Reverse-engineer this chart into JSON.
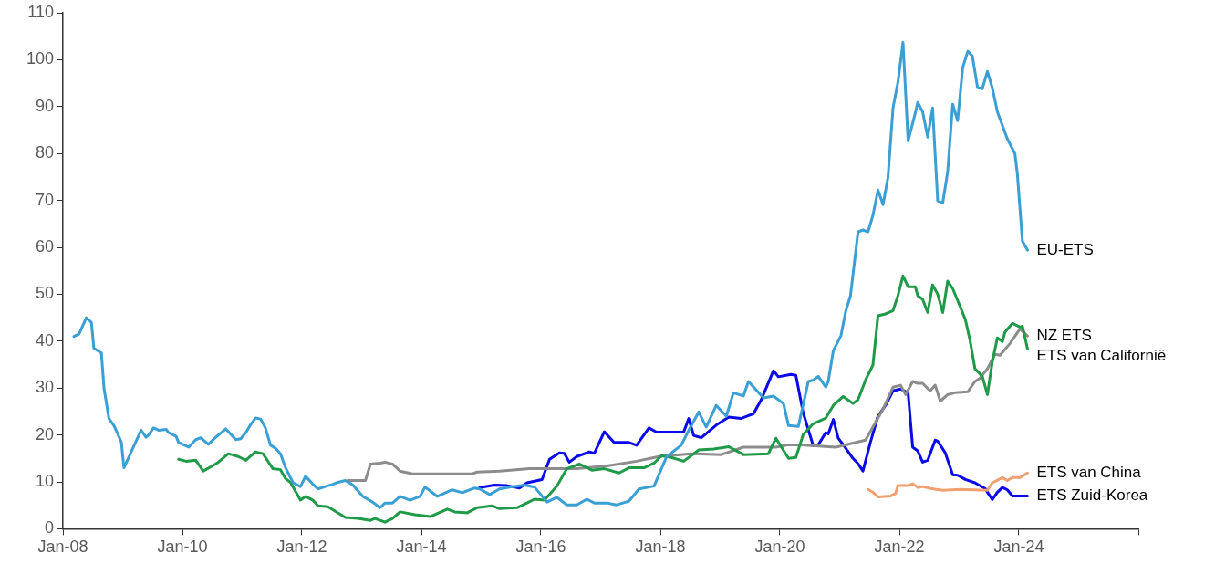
{
  "chart_data": {
    "type": "line",
    "xlim": [
      "2008-01",
      "2026-01"
    ],
    "ylim": [
      0,
      110
    ],
    "xticks": [
      {
        "value": "2008-01",
        "label": "Jan-08"
      },
      {
        "value": "2010-01",
        "label": "Jan-10"
      },
      {
        "value": "2012-01",
        "label": "Jan-12"
      },
      {
        "value": "2014-01",
        "label": "Jan-14"
      },
      {
        "value": "2016-01",
        "label": "Jan-16"
      },
      {
        "value": "2018-01",
        "label": "Jan-18"
      },
      {
        "value": "2020-01",
        "label": "Jan-20"
      },
      {
        "value": "2022-01",
        "label": "Jan-22"
      },
      {
        "value": "2024-01",
        "label": "Jan-24"
      },
      {
        "value": "2026-01",
        "label": null
      }
    ],
    "yticks": [
      0,
      10,
      20,
      30,
      40,
      50,
      60,
      70,
      80,
      90,
      100,
      110
    ],
    "grid": false,
    "legend": false,
    "marker": "none",
    "line_style": "solid",
    "series": [
      {
        "name": "EU-ETS",
        "color": "#3a9fd5",
        "x": [
          "2008-03-08",
          "2008-04-08",
          "2008-05-23",
          "2008-06-23",
          "2008-07-08",
          "2008-08-23",
          "2008-09-08",
          "2008-10-08",
          "2008-11-08",
          "2008-12-23",
          "2009-01-08",
          "2009-03-08",
          "2009-04-23",
          "2009-05-23",
          "2009-06-08",
          "2009-07-08",
          "2009-08-08",
          "2009-09-23",
          "2009-10-08",
          "2009-11-23",
          "2009-12-08",
          "2010-02-08",
          "2010-03-23",
          "2010-04-23",
          "2010-06-08",
          "2010-07-23",
          "2010-09-23",
          "2010-11-23",
          "2010-12-23",
          "2011-01-23",
          "2011-02-23",
          "2011-03-23",
          "2011-04-23",
          "2011-05-23",
          "2011-06-23",
          "2011-07-23",
          "2011-08-23",
          "2011-09-23",
          "2011-11-08",
          "2011-12-23",
          "2012-01-23",
          "2012-03-08",
          "2012-04-08",
          "2012-05-23",
          "2012-07-08",
          "2012-08-08",
          "2012-09-23",
          "2012-11-08",
          "2013-01-08",
          "2013-03-08",
          "2013-04-23",
          "2013-05-23",
          "2013-07-08",
          "2013-08-23",
          "2013-10-23",
          "2013-12-23",
          "2014-01-23",
          "2014-04-08",
          "2014-07-08",
          "2014-09-08",
          "2014-11-23",
          "2014-12-23",
          "2015-02-23",
          "2015-04-23",
          "2015-06-23",
          "2015-09-23",
          "2015-11-23",
          "2016-02-08",
          "2016-04-08",
          "2016-06-08",
          "2016-08-08",
          "2016-10-08",
          "2016-11-23",
          "2017-02-08",
          "2017-04-08",
          "2017-06-23",
          "2017-08-23",
          "2017-11-23",
          "2018-02-08",
          "2018-05-08",
          "2018-06-23",
          "2018-08-23",
          "2018-10-08",
          "2018-12-08",
          "2019-02-08",
          "2019-03-23",
          "2019-05-23",
          "2019-06-23",
          "2019-09-23",
          "2019-11-23",
          "2020-01-23",
          "2020-02-23",
          "2020-04-23",
          "2020-06-23",
          "2020-07-23",
          "2020-08-23",
          "2020-10-08",
          "2020-10-23",
          "2020-11-23",
          "2021-01-08",
          "2021-02-08",
          "2021-03-08",
          "2021-04-23",
          "2021-05-23",
          "2021-06-23",
          "2021-07-23",
          "2021-08-23",
          "2021-09-23",
          "2021-10-23",
          "2021-11-23",
          "2021-12-23",
          "2022-01-23",
          "2022-02-23",
          "2022-04-08",
          "2022-04-23",
          "2022-05-23",
          "2022-06-23",
          "2022-07-23",
          "2022-08-23",
          "2022-09-23",
          "2022-10-23",
          "2022-11-23",
          "2022-12-23",
          "2023-01-23",
          "2023-02-23",
          "2023-03-23",
          "2023-04-23",
          "2023-05-23",
          "2023-06-23",
          "2023-07-23",
          "2023-08-23",
          "2023-10-23",
          "2023-12-08",
          "2023-12-23",
          "2024-01-23",
          "2024-02-23"
        ],
        "values": [
          41,
          41.5,
          45,
          44,
          38.5,
          37.5,
          30,
          23.5,
          22,
          18.5,
          13,
          17.5,
          21,
          19.5,
          20,
          21.5,
          21,
          21.2,
          20.5,
          19.7,
          18.4,
          17.4,
          19,
          19.4,
          18,
          19.5,
          21.3,
          19,
          19.2,
          20.5,
          22.3,
          23.6,
          23.4,
          21.5,
          17.8,
          17.2,
          16,
          13,
          9.8,
          9,
          11.2,
          9.5,
          8.5,
          9,
          9.5,
          9.9,
          10.3,
          9.3,
          6.9,
          5.7,
          4.5,
          5.5,
          5.5,
          6.9,
          6.1,
          6.9,
          8.9,
          6.9,
          8.3,
          7.7,
          8.7,
          8.5,
          7.3,
          8.5,
          8.9,
          9.3,
          8.9,
          5.7,
          6.7,
          5.1,
          5.1,
          6.3,
          5.5,
          5.5,
          5.1,
          5.9,
          8.5,
          9.1,
          15.4,
          17.8,
          21,
          24.9,
          21.7,
          26.3,
          24,
          29,
          28.3,
          31.4,
          27.9,
          28.3,
          26.7,
          22,
          21.8,
          31.4,
          31.7,
          32.5,
          30.2,
          31.4,
          38,
          41.1,
          46.5,
          49.7,
          63.3,
          63.7,
          63.3,
          66.8,
          72.2,
          69.1,
          74.9,
          89.7,
          95.2,
          103.7,
          82.7,
          88.6,
          90.9,
          88.9,
          83.5,
          89.7,
          69.9,
          69.5,
          76.1,
          90.5,
          87,
          98.3,
          101.8,
          100.8,
          94.2,
          93.8,
          97.5,
          94,
          88.9,
          83.1,
          80,
          75.7,
          61.3,
          59.4
        ]
      },
      {
        "name": "ETS van Californië",
        "color": "#1f9a48",
        "x": [
          "2009-12-08",
          "2010-01-23",
          "2010-03-23",
          "2010-05-08",
          "2010-06-23",
          "2010-08-08",
          "2010-10-08",
          "2010-12-08",
          "2011-01-23",
          "2011-03-23",
          "2011-05-08",
          "2011-07-08",
          "2011-08-23",
          "2011-09-23",
          "2011-10-23",
          "2011-12-23",
          "2012-01-23",
          "2012-03-08",
          "2012-04-08",
          "2012-06-08",
          "2012-08-08",
          "2012-09-23",
          "2012-12-08",
          "2013-02-23",
          "2013-03-23",
          "2013-05-23",
          "2013-07-08",
          "2013-08-23",
          "2013-11-23",
          "2014-02-23",
          "2014-06-08",
          "2014-07-23",
          "2014-10-08",
          "2014-12-08",
          "2015-03-08",
          "2015-04-23",
          "2015-08-08",
          "2015-10-08",
          "2015-11-23",
          "2016-01-23",
          "2016-04-08",
          "2016-06-08",
          "2016-08-23",
          "2016-11-08",
          "2017-01-23",
          "2017-04-23",
          "2017-06-23",
          "2017-09-23",
          "2017-11-23",
          "2018-01-08",
          "2018-03-08",
          "2018-05-23",
          "2018-08-23",
          "2018-11-23",
          "2019-02-23",
          "2019-05-23",
          "2019-10-23",
          "2019-12-08",
          "2020-02-23",
          "2020-04-08",
          "2020-05-23",
          "2020-07-23",
          "2020-10-08",
          "2020-11-23",
          "2021-01-23",
          "2021-03-23",
          "2021-04-23",
          "2021-06-08",
          "2021-07-23",
          "2021-08-23",
          "2021-10-08",
          "2021-11-23",
          "2021-12-23",
          "2022-01-23",
          "2022-02-23",
          "2022-04-08",
          "2022-04-23",
          "2022-05-23",
          "2022-06-23",
          "2022-07-23",
          "2022-08-23",
          "2022-09-23",
          "2022-10-23",
          "2022-11-23",
          "2023-01-08",
          "2023-02-08",
          "2023-03-08",
          "2023-04-08",
          "2023-05-23",
          "2023-06-23",
          "2023-07-23",
          "2023-08-23",
          "2023-09-23",
          "2023-10-08",
          "2023-11-23",
          "2024-01-08",
          "2024-01-23",
          "2024-02-23"
        ],
        "values": [
          14.8,
          14.4,
          14.6,
          12.3,
          13.2,
          14.2,
          16,
          15.4,
          14.6,
          16.4,
          16,
          12.8,
          12.6,
          10.7,
          9.9,
          6.1,
          6.9,
          6.1,
          4.9,
          4.7,
          3.4,
          2.4,
          2.2,
          1.8,
          2.2,
          1.4,
          2.2,
          3.6,
          3,
          2.6,
          4.2,
          3.6,
          3.4,
          4.5,
          4.9,
          4.3,
          4.5,
          5.5,
          6.3,
          6.1,
          9.1,
          12.8,
          13.8,
          12.5,
          12.8,
          11.9,
          13,
          13,
          14,
          15.6,
          15.2,
          14.4,
          16.8,
          17,
          17.5,
          15.8,
          16,
          19.3,
          15,
          15.2,
          20.1,
          22.4,
          23.6,
          26.3,
          28.2,
          26.7,
          27.5,
          31.7,
          34.9,
          45.4,
          45.8,
          46.5,
          49.7,
          53.9,
          51.6,
          51.6,
          49.7,
          48.9,
          46.1,
          52,
          50,
          46.1,
          52.8,
          51.2,
          47.3,
          44.6,
          40.3,
          34.1,
          32.5,
          28.6,
          35.6,
          40.7,
          39.9,
          41.9,
          43.8,
          43,
          43.2,
          38.4
        ]
      },
      {
        "name": "NZ ETS",
        "color": "#8c8c8c",
        "x": [
          "2012-10-08",
          "2013-01-23",
          "2013-02-23",
          "2013-04-23",
          "2013-05-23",
          "2013-07-08",
          "2013-08-23",
          "2013-11-08",
          "2014-11-08",
          "2014-12-08",
          "2015-04-23",
          "2015-10-23",
          "2016-08-08",
          "2017-02-08",
          "2017-08-08",
          "2017-12-23",
          "2018-07-08",
          "2019-01-08",
          "2019-05-23",
          "2019-12-08",
          "2020-02-23",
          "2020-05-08",
          "2020-12-08",
          "2021-06-08",
          "2021-09-23",
          "2021-11-23",
          "2022-01-08",
          "2022-02-08",
          "2022-03-23",
          "2022-04-23",
          "2022-05-23",
          "2022-07-08",
          "2022-08-08",
          "2022-09-08",
          "2022-10-23",
          "2022-12-08",
          "2023-02-23",
          "2023-04-08",
          "2023-05-08",
          "2023-06-23",
          "2023-08-08",
          "2023-09-08",
          "2023-11-08",
          "2024-01-08",
          "2024-02-23"
        ],
        "values": [
          10.3,
          10.3,
          13.8,
          14,
          14.2,
          13.8,
          12.3,
          11.7,
          11.7,
          12.1,
          12.3,
          12.8,
          12.8,
          13.4,
          14.4,
          15.4,
          16,
          15.8,
          17.4,
          17.4,
          17.9,
          17.9,
          17.4,
          18.9,
          25.5,
          30.2,
          30.6,
          28.6,
          31.4,
          31,
          31,
          29.4,
          30.6,
          27.2,
          28.6,
          29,
          29.2,
          31.4,
          32.1,
          34.1,
          37.2,
          37,
          39.5,
          42.6,
          41.1
        ]
      },
      {
        "name": "ETS van China",
        "color": "#f0a070",
        "x": [
          "2021-06-23",
          "2021-07-23",
          "2021-08-23",
          "2021-11-08",
          "2021-12-08",
          "2021-12-23",
          "2022-02-23",
          "2022-03-23",
          "2022-04-23",
          "2022-05-23",
          "2022-07-08",
          "2022-09-23",
          "2023-01-08",
          "2023-06-23",
          "2023-07-23",
          "2023-09-23",
          "2023-10-23",
          "2023-11-23",
          "2024-01-08",
          "2024-02-23"
        ],
        "values": [
          8.4,
          7.8,
          6.8,
          7,
          7.5,
          9.2,
          9.2,
          9.6,
          8.8,
          9,
          8.6,
          8.2,
          8.4,
          8.2,
          9.8,
          10.9,
          10.3,
          10.9,
          10.9,
          11.9
        ]
      },
      {
        "name": "ETS Zuid-Korea",
        "color": "#0a0ae6",
        "x": [
          "2014-12-23",
          "2015-03-23",
          "2015-06-08",
          "2015-08-23",
          "2015-10-08",
          "2016-01-08",
          "2016-02-23",
          "2016-04-23",
          "2016-05-23",
          "2016-06-23",
          "2016-08-08",
          "2016-10-23",
          "2016-11-23",
          "2017-01-23",
          "2017-03-23",
          "2017-06-23",
          "2017-08-08",
          "2017-10-23",
          "2017-12-08",
          "2018-05-23",
          "2018-06-23",
          "2018-07-23",
          "2018-09-08",
          "2018-12-08",
          "2019-02-23",
          "2019-05-08",
          "2019-07-23",
          "2019-09-08",
          "2019-11-23",
          "2019-12-23",
          "2020-03-08",
          "2020-04-08",
          "2020-05-23",
          "2020-07-23",
          "2020-08-23",
          "2020-10-08",
          "2020-10-23",
          "2020-11-23",
          "2020-12-23",
          "2021-01-23",
          "2021-03-23",
          "2021-04-23",
          "2021-05-23",
          "2021-07-08",
          "2021-08-23",
          "2021-10-08",
          "2021-11-23",
          "2022-01-08",
          "2022-02-23",
          "2022-03-23",
          "2022-04-23",
          "2022-05-23",
          "2022-06-23",
          "2022-08-08",
          "2022-08-23",
          "2022-10-08",
          "2022-11-23",
          "2022-12-23",
          "2023-02-08",
          "2023-04-08",
          "2023-06-08",
          "2023-07-23",
          "2023-08-23",
          "2023-09-23",
          "2023-10-23",
          "2023-11-23",
          "2024-02-23"
        ],
        "values": [
          8.8,
          9.3,
          9.2,
          8.7,
          9.8,
          10.5,
          14.8,
          16.2,
          16.1,
          14.2,
          15.4,
          16.4,
          16.1,
          20.7,
          18.4,
          18.4,
          17.8,
          21.5,
          20.6,
          20.6,
          23.5,
          19.9,
          19.4,
          22.1,
          23.8,
          23.5,
          24.5,
          27.4,
          33.7,
          32.4,
          32.9,
          32.7,
          24.7,
          17.7,
          17.9,
          20.5,
          20.2,
          23.3,
          19.3,
          17.9,
          15,
          13.9,
          12.3,
          18.5,
          24,
          26.3,
          29.4,
          29.8,
          29,
          17.4,
          16.6,
          14.2,
          14.6,
          18.9,
          18.7,
          16.2,
          11.5,
          11.4,
          10.5,
          9.8,
          8.6,
          6.2,
          7.8,
          8.8,
          8.3,
          7,
          7
        ]
      }
    ]
  }
}
